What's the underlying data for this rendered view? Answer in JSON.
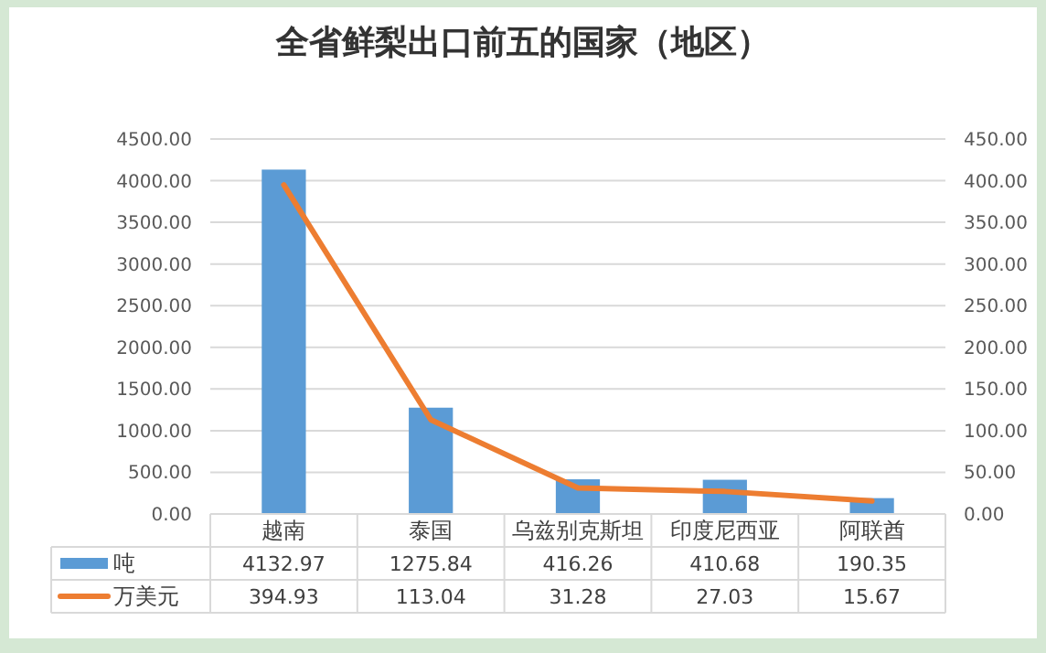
{
  "chart_data": {
    "type": "bar",
    "title": "全省鲜梨出口前五的国家（地区）",
    "categories": [
      "越南",
      "泰国",
      "乌兹别克斯坦",
      "印度尼西亚",
      "阿联酋"
    ],
    "series": [
      {
        "name": "吨",
        "color": "#5b9bd5",
        "values": [
          4132.97,
          1275.84,
          416.26,
          410.68,
          190.35
        ]
      },
      {
        "name": "万美元",
        "type": "line",
        "axis": "y2",
        "color": "#ed7d31",
        "values": [
          394.93,
          113.04,
          31.28,
          27.03,
          15.67
        ]
      }
    ],
    "ylim": [
      0,
      4500
    ],
    "yticks": [
      {
        "value": 0,
        "label": "0.00"
      },
      {
        "value": 500,
        "label": "500.00"
      },
      {
        "value": 1000,
        "label": "1000.00"
      },
      {
        "value": 1500,
        "label": "1500.00"
      },
      {
        "value": 2000,
        "label": "2000.00"
      },
      {
        "value": 2500,
        "label": "2500.00"
      },
      {
        "value": 3000,
        "label": "3000.00"
      },
      {
        "value": 3500,
        "label": "3500.00"
      },
      {
        "value": 4000,
        "label": "4000.00"
      },
      {
        "value": 4500,
        "label": "4500.00"
      }
    ],
    "y2lim": [
      0,
      450
    ],
    "y2ticks": [
      {
        "value": 0,
        "label": "0.00"
      },
      {
        "value": 50,
        "label": "50.00"
      },
      {
        "value": 100,
        "label": "100.00"
      },
      {
        "value": 150,
        "label": "150.00"
      },
      {
        "value": 200,
        "label": "200.00"
      },
      {
        "value": 250,
        "label": "250.00"
      },
      {
        "value": 300,
        "label": "300.00"
      },
      {
        "value": 350,
        "label": "350.00"
      },
      {
        "value": 400,
        "label": "400.00"
      },
      {
        "value": 450,
        "label": "450.00"
      }
    ],
    "grid": "y",
    "legend": "bottom",
    "data_labels": true,
    "marker": "none",
    "line_style": "solid"
  }
}
